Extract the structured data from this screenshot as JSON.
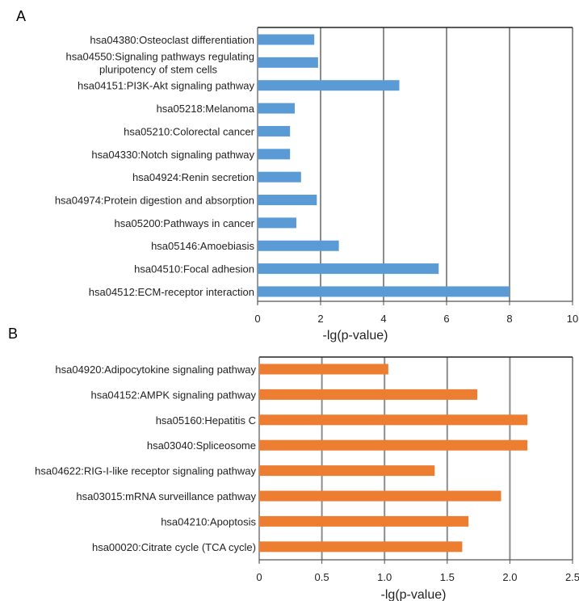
{
  "chart_data": [
    {
      "type": "bar",
      "orientation": "horizontal",
      "panel": "A",
      "categories": [
        "hsa04380:Osteoclast differentiation",
        "hsa04550:Signaling pathways regulating pluripotency of stem cells",
        "hsa04151:PI3K-Akt signaling pathway",
        "hsa05218:Melanoma",
        "hsa05210:Colorectal cancer",
        "hsa04330:Notch signaling pathway",
        "hsa04924:Renin secretion",
        "hsa04974:Protein digestion and absorption",
        "hsa05200:Pathways in cancer",
        "hsa05146:Amoebiasis",
        "hsa04510:Focal adhesion",
        "hsa04512:ECM-receptor interaction"
      ],
      "category_lines": [
        [
          "hsa04380:Osteoclast differentiation"
        ],
        [
          "hsa04550:Signaling pathways regulating",
          "pluripotency of stem cells"
        ],
        [
          "hsa04151:PI3K-Akt signaling pathway"
        ],
        [
          "hsa05218:Melanoma"
        ],
        [
          "hsa05210:Colorectal cancer"
        ],
        [
          "hsa04330:Notch signaling pathway"
        ],
        [
          "hsa04924:Renin secretion"
        ],
        [
          "hsa04974:Protein digestion and absorption"
        ],
        [
          "hsa05200:Pathways in cancer"
        ],
        [
          "hsa05146:Amoebiasis"
        ],
        [
          "hsa04510:Focal adhesion"
        ],
        [
          "hsa04512:ECM-receptor interaction"
        ]
      ],
      "values": [
        1.8,
        1.92,
        4.5,
        1.18,
        1.03,
        1.03,
        1.38,
        1.88,
        1.23,
        2.58,
        5.75,
        8.0
      ],
      "xlabel": "-lg(p-value)",
      "xlim": [
        0,
        10
      ],
      "xticks": [
        0,
        2,
        4,
        6,
        8,
        10
      ],
      "xtick_labels": [
        "0",
        "2",
        "4",
        "6",
        "8",
        "10"
      ],
      "bar_color": "#5b9bd5",
      "grid": "vertical"
    },
    {
      "type": "bar",
      "orientation": "horizontal",
      "panel": "B",
      "categories": [
        "hsa04920:Adipocytokine signaling pathway",
        "hsa04152:AMPK signaling pathway",
        "hsa05160:Hepatitis C",
        "hsa03040:Spliceosome",
        "hsa04622:RIG-I-like receptor signaling pathway",
        "hsa03015:mRNA surveillance pathway",
        "hsa04210:Apoptosis",
        "hsa00020:Citrate cycle (TCA cycle)"
      ],
      "category_lines": [
        [
          "hsa04920:Adipocytokine signaling pathway"
        ],
        [
          "hsa04152:AMPK signaling pathway"
        ],
        [
          "hsa05160:Hepatitis C"
        ],
        [
          "hsa03040:Spliceosome"
        ],
        [
          "hsa04622:RIG-I-like receptor signaling pathway"
        ],
        [
          "hsa03015:mRNA surveillance pathway"
        ],
        [
          "hsa04210:Apoptosis"
        ],
        [
          "hsa00020:Citrate cycle (TCA cycle)"
        ]
      ],
      "values": [
        1.03,
        1.74,
        2.14,
        2.14,
        1.4,
        1.93,
        1.67,
        1.62
      ],
      "xlabel": "-lg(p-value)",
      "xlim": [
        0,
        2.5
      ],
      "xticks": [
        0,
        0.5,
        1.0,
        1.5,
        2.0,
        2.5
      ],
      "xtick_labels": [
        "0",
        "0.5",
        "1.0",
        "1.5",
        "2.0",
        "2.5"
      ],
      "bar_color": "#ed7d31",
      "grid": "vertical"
    }
  ]
}
